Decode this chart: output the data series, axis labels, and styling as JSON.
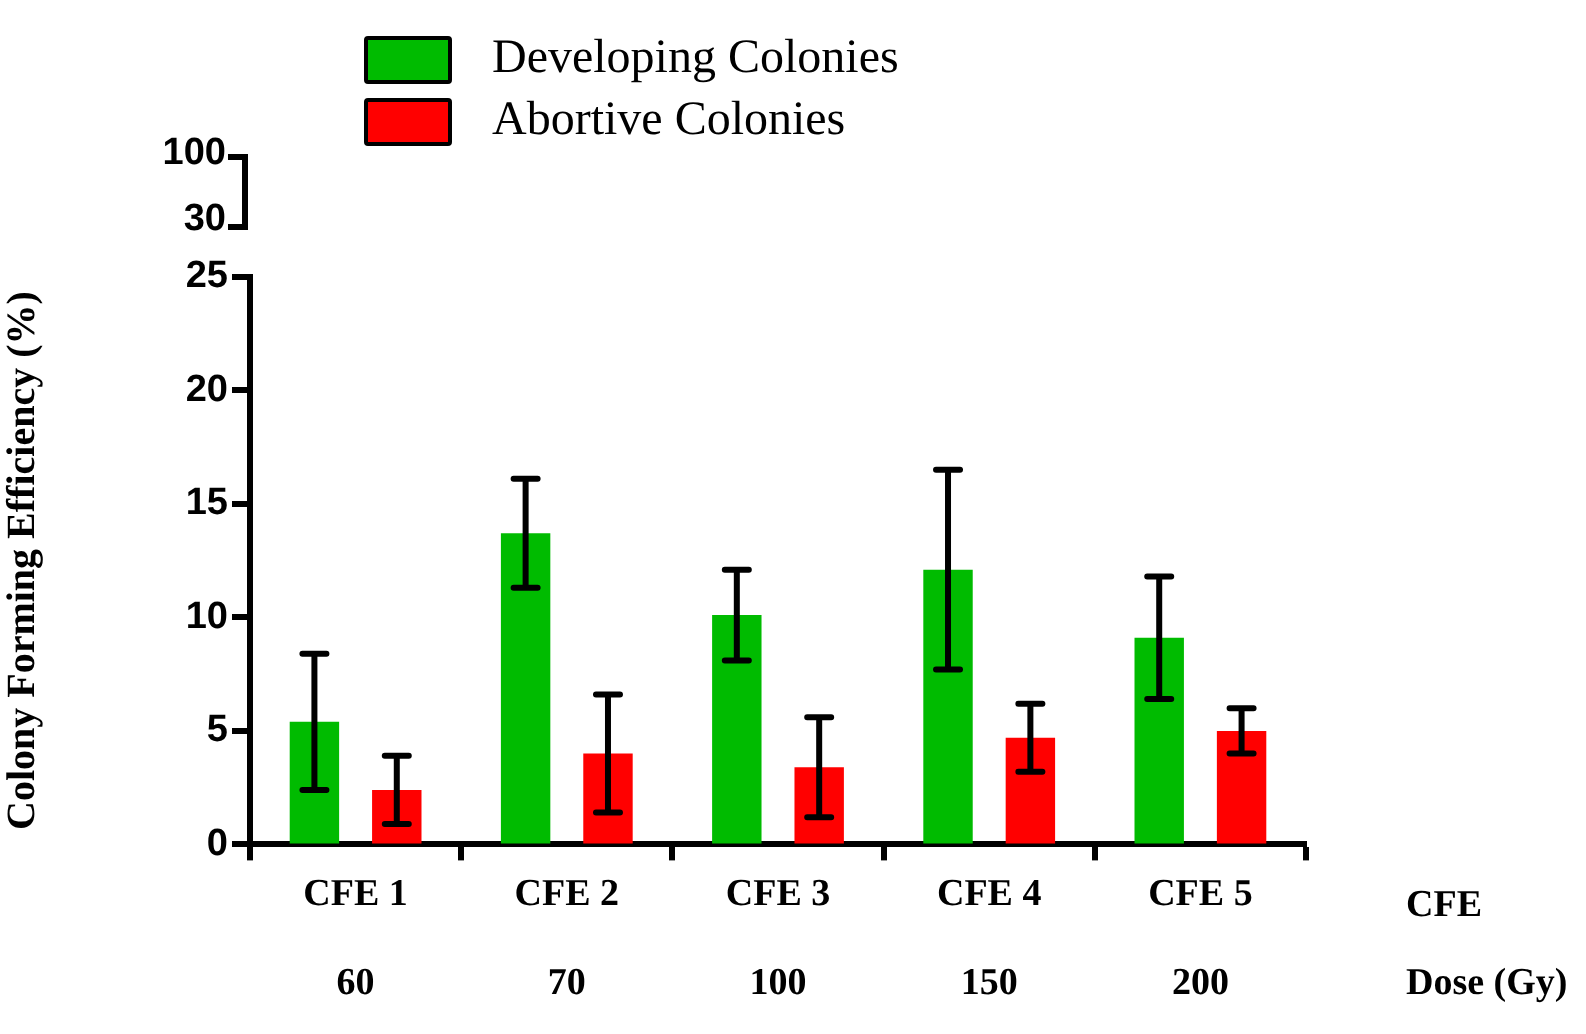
{
  "chart_data": [
    {
      "type": "other",
      "annotations": [
        "100",
        "30"
      ]
    },
    {
      "type": "bar",
      "ylabel": "Colony Forming Efficiency (%)",
      "categories": [
        "CFE 1",
        "CFE 2",
        "CFE 3",
        "CFE 4",
        "CFE 5"
      ],
      "series": [
        {
          "name": "Developing Colonies",
          "color": "#00bb00",
          "values": [
            5.4,
            13.7,
            10.1,
            12.1,
            9.1
          ],
          "errors": [
            3.0,
            2.4,
            2.0,
            4.4,
            2.7
          ]
        },
        {
          "name": "Abortive Colonies",
          "color": "#ff0000",
          "values": [
            2.4,
            4.0,
            3.4,
            4.7,
            5.0
          ],
          "errors": [
            1.5,
            2.6,
            2.2,
            1.5,
            1.0
          ]
        }
      ],
      "ylim": [
        0,
        25
      ],
      "yticks": [
        0,
        5,
        10,
        15,
        20,
        25
      ],
      "grid": false,
      "legend": "top",
      "annotations": [
        "CFE",
        "Dose (Gy)",
        "60",
        "70",
        "100",
        "150",
        "200"
      ]
    }
  ]
}
